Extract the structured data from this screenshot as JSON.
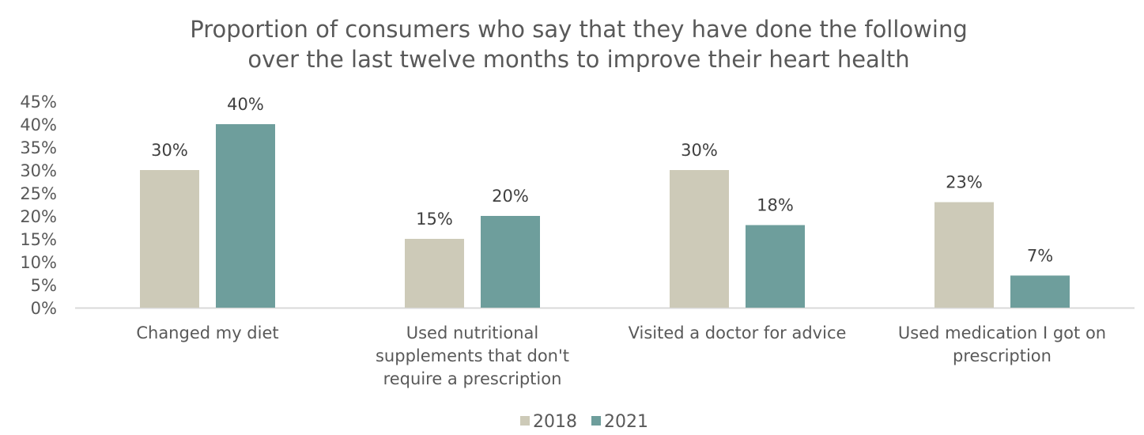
{
  "chart_data": {
    "type": "bar",
    "title": [
      "Proportion of consumers who say that they have done the following",
      "over the last twelve months to improve their heart health"
    ],
    "xlabel": "",
    "ylabel": "",
    "ylim": [
      0,
      45
    ],
    "yticks": [
      "0%",
      "5%",
      "10%",
      "15%",
      "20%",
      "25%",
      "30%",
      "35%",
      "40%",
      "45%"
    ],
    "grid": false,
    "legend_position": "bottom",
    "categories": [
      [
        "Changed my diet"
      ],
      [
        "Used nutritional",
        "supplements that don't",
        "require a prescription"
      ],
      [
        "Visited a doctor for advice"
      ],
      [
        "Used medication I got on",
        "prescription"
      ]
    ],
    "series": [
      {
        "name": "2018",
        "color": "#cdcab8",
        "values": [
          30,
          15,
          30,
          23
        ],
        "labels": [
          "30%",
          "15%",
          "30%",
          "23%"
        ]
      },
      {
        "name": "2021",
        "color": "#6e9e9c",
        "values": [
          40,
          20,
          18,
          7
        ],
        "labels": [
          "40%",
          "20%",
          "18%",
          "7%"
        ]
      }
    ]
  }
}
